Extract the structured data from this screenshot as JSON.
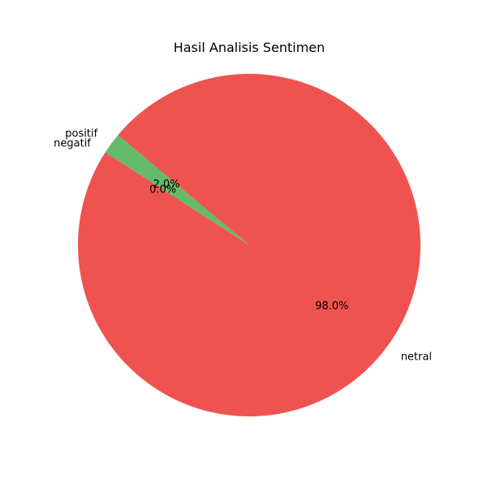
{
  "chart_data": {
    "type": "pie",
    "title": "Hasil Analisis Sentimen",
    "start_angle_deg": 140,
    "direction": "counterclockwise",
    "slices": [
      {
        "label": "positif",
        "value": 2.0,
        "pct_text": "2.0%",
        "color": "#66bb6a"
      },
      {
        "label": "negatif",
        "value": 0.0,
        "pct_text": "0.0%",
        "color": "#ef5350"
      },
      {
        "label": "netral",
        "value": 98.0,
        "pct_text": "98.0%",
        "color": "#ef5350"
      }
    ]
  }
}
